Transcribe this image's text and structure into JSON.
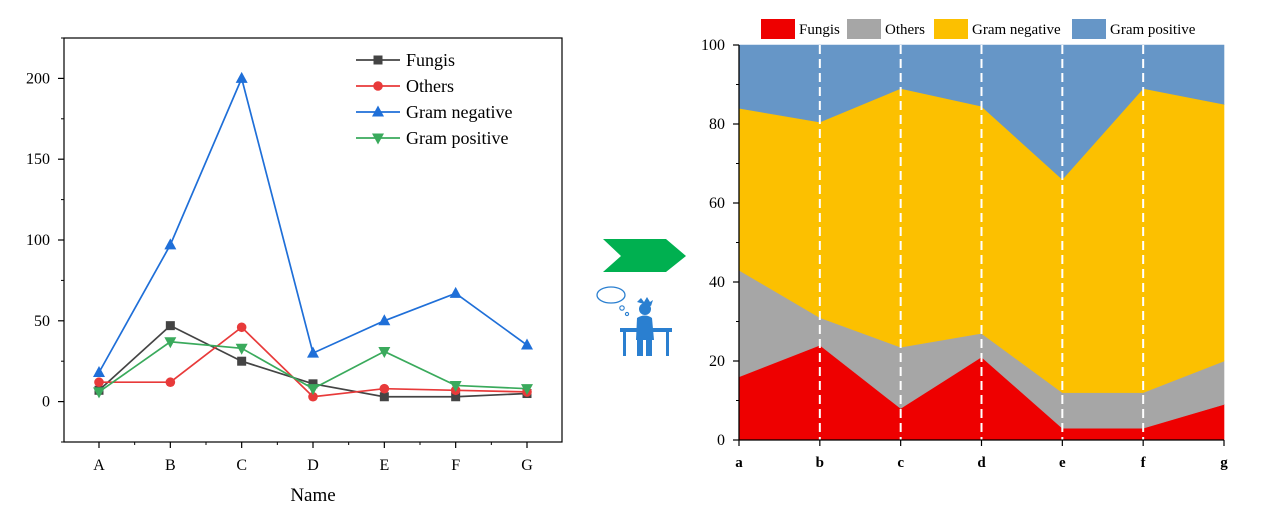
{
  "arrow_color": "#00b050",
  "chart_data": [
    {
      "type": "line",
      "xlabel": "Name",
      "ylabel": "",
      "categories": [
        "A",
        "B",
        "C",
        "D",
        "E",
        "F",
        "G"
      ],
      "ylim": [
        -25,
        225
      ],
      "yticks": [
        0,
        50,
        100,
        150,
        200
      ],
      "grid": false,
      "legend_position": "top-right",
      "series": [
        {
          "name": "Fungis",
          "color": "#444444",
          "marker": "square",
          "values": [
            7,
            47,
            25,
            11,
            3,
            3,
            5
          ]
        },
        {
          "name": "Others",
          "color": "#e83a3a",
          "marker": "circle",
          "values": [
            12,
            12,
            46,
            3,
            8,
            7,
            6
          ]
        },
        {
          "name": "Gram negative",
          "color": "#1f6fd8",
          "marker": "triangle-up",
          "values": [
            18,
            97,
            200,
            30,
            50,
            67,
            35
          ]
        },
        {
          "name": "Gram positive",
          "color": "#3aaa5c",
          "marker": "triangle-down",
          "values": [
            6,
            37,
            33,
            8,
            31,
            10,
            8
          ]
        }
      ]
    },
    {
      "type": "area",
      "stacked": true,
      "percent": true,
      "categories": [
        "a",
        "b",
        "c",
        "d",
        "e",
        "f",
        "g"
      ],
      "ylim": [
        0,
        100
      ],
      "yticks": [
        0,
        20,
        40,
        60,
        80,
        100
      ],
      "grid": false,
      "legend_position": "top",
      "series": [
        {
          "name": "Fungis",
          "color": "#ee0000",
          "values": [
            16,
            24,
            8,
            21,
            3,
            3,
            9
          ]
        },
        {
          "name": "Others",
          "color": "#a6a6a6",
          "values": [
            27,
            7,
            15.5,
            6,
            9,
            9,
            11
          ]
        },
        {
          "name": "Gram negative",
          "color": "#fcc000",
          "values": [
            41,
            49.5,
            65.5,
            57.5,
            54,
            77,
            65
          ]
        },
        {
          "name": "Gram positive",
          "color": "#6696c7",
          "values": [
            16,
            19.5,
            11,
            15.5,
            34,
            11,
            15
          ]
        }
      ]
    }
  ]
}
